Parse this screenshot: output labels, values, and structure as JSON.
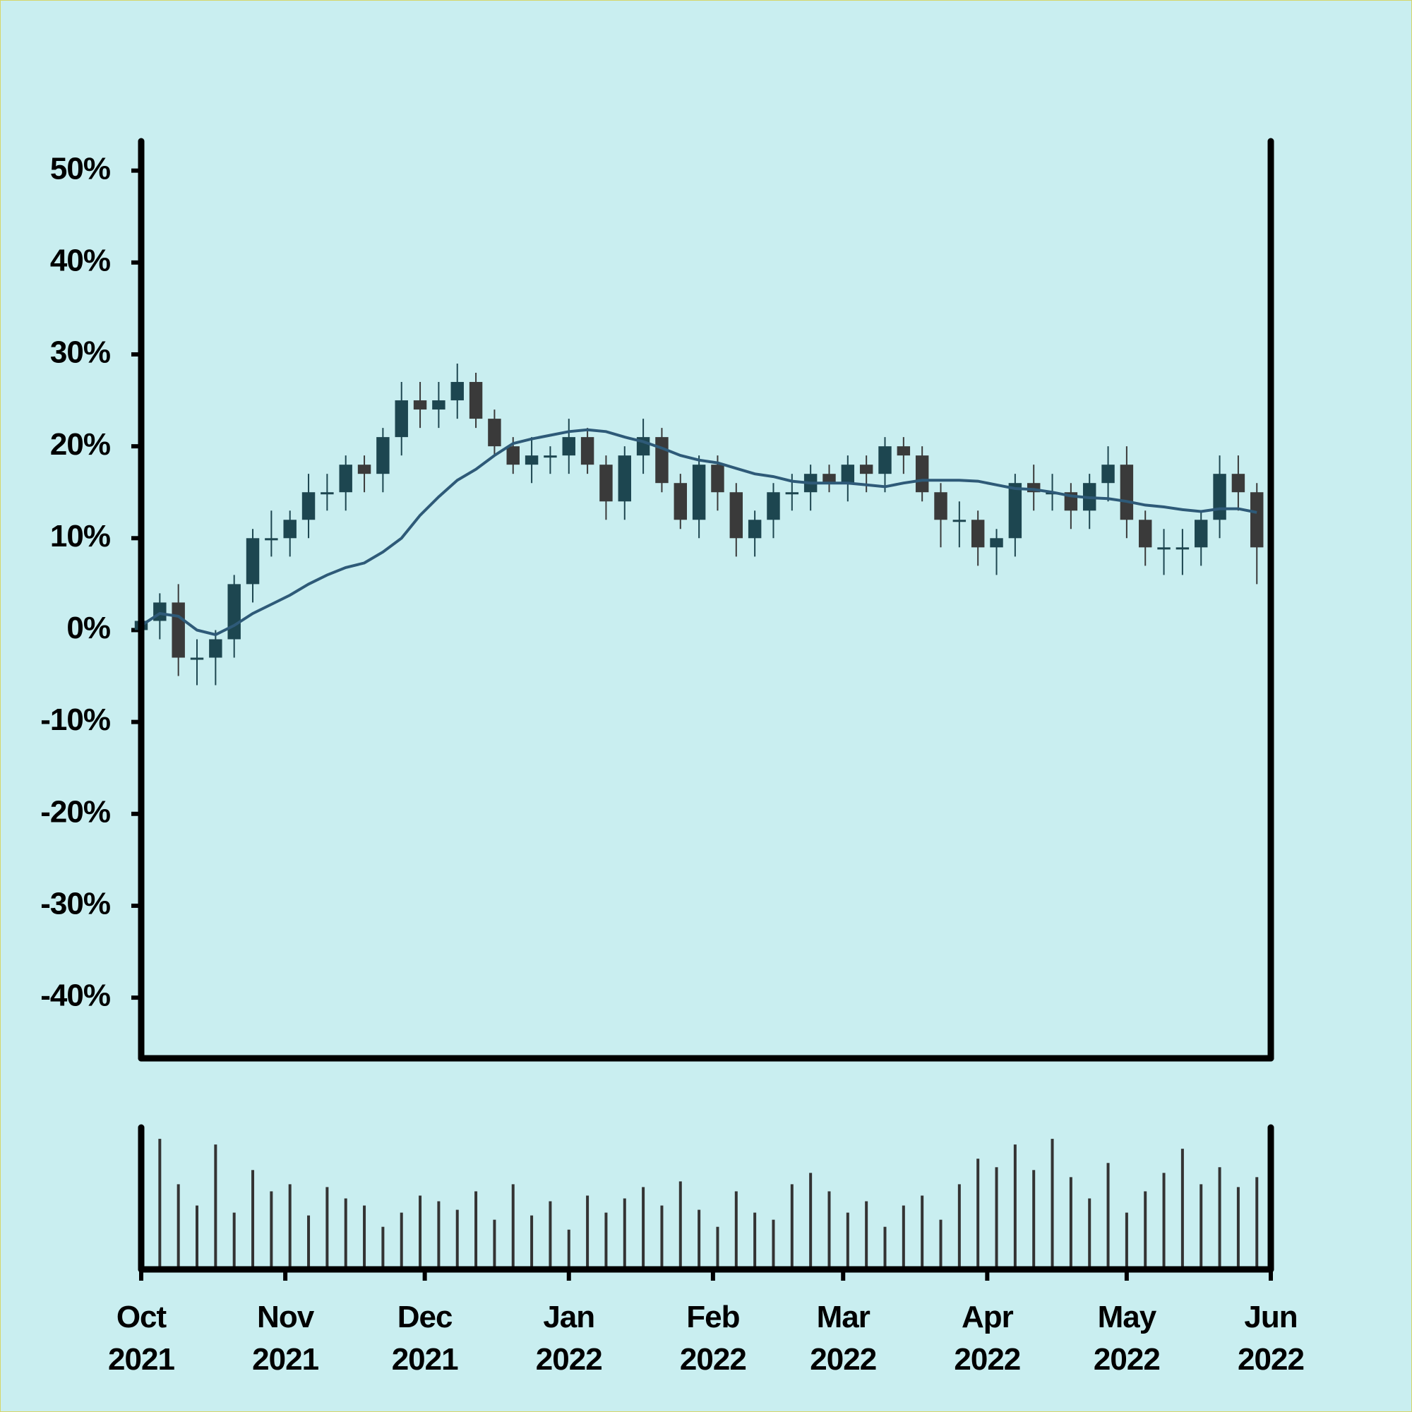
{
  "chart_data": {
    "type": "candlestick",
    "x": [
      0,
      4,
      8,
      12,
      16,
      20,
      24,
      28,
      32,
      36,
      40,
      44,
      48,
      52,
      56,
      60,
      64,
      68,
      72,
      76,
      80,
      84,
      88,
      92,
      96,
      100,
      104,
      108,
      112,
      116,
      120,
      124,
      128,
      132,
      136,
      140,
      144,
      148,
      152,
      156,
      160,
      164,
      168,
      172,
      176,
      180,
      184,
      188,
      192,
      196,
      200,
      204,
      208,
      212,
      216,
      220,
      224,
      228,
      232,
      236,
      240
    ],
    "open": [
      0,
      1,
      3,
      -3,
      -3,
      -1,
      5,
      10,
      10,
      12,
      15,
      15,
      18,
      17,
      21,
      25,
      24,
      25,
      27,
      23,
      20,
      18,
      19,
      19,
      21,
      18,
      14,
      19,
      21,
      16,
      12,
      18,
      15,
      10,
      12,
      15,
      15,
      17,
      16,
      18,
      17,
      20,
      19,
      15,
      12,
      12,
      9,
      10,
      16,
      15,
      15,
      13,
      16,
      18,
      12,
      9,
      9,
      9,
      12,
      17,
      15
    ],
    "high": [
      3,
      4,
      5,
      -1,
      0,
      6,
      11,
      13,
      13,
      17,
      17,
      19,
      19,
      22,
      27,
      27,
      27,
      29,
      28,
      24,
      21,
      21,
      20,
      23,
      22,
      19,
      20,
      23,
      22,
      17,
      19,
      19,
      16,
      13,
      16,
      17,
      18,
      18,
      19,
      19,
      21,
      21,
      20,
      16,
      14,
      13,
      11,
      17,
      18,
      17,
      16,
      17,
      20,
      20,
      13,
      11,
      11,
      13,
      19,
      19,
      16
    ],
    "low": [
      -3,
      -1,
      -5,
      -6,
      -6,
      -3,
      3,
      8,
      8,
      10,
      13,
      13,
      15,
      15,
      19,
      22,
      22,
      23,
      22,
      19,
      17,
      16,
      17,
      17,
      17,
      12,
      12,
      17,
      15,
      11,
      10,
      13,
      8,
      8,
      10,
      13,
      13,
      15,
      14,
      15,
      15,
      17,
      14,
      9,
      9,
      7,
      6,
      8,
      13,
      13,
      11,
      11,
      14,
      10,
      7,
      6,
      6,
      7,
      10,
      13,
      5
    ],
    "close": [
      1,
      3,
      -3,
      -3,
      -1,
      5,
      10,
      10,
      12,
      15,
      15,
      18,
      17,
      21,
      25,
      24,
      25,
      27,
      23,
      20,
      18,
      19,
      19,
      21,
      18,
      14,
      19,
      21,
      16,
      12,
      18,
      15,
      10,
      12,
      15,
      15,
      17,
      16,
      18,
      17,
      20,
      19,
      15,
      12,
      12,
      9,
      10,
      16,
      15,
      15,
      13,
      16,
      18,
      12,
      9,
      9,
      9,
      12,
      17,
      15,
      9
    ],
    "up_color": "#1d4650",
    "down_color": "#3a3a3a",
    "moving_average": {
      "color": "#2e5a78",
      "values": [
        0.5,
        1.8,
        1.5,
        0,
        -0.5,
        0.5,
        1.8,
        2.8,
        3.8,
        5,
        6,
        6.8,
        7.3,
        8.5,
        10,
        12.5,
        14.5,
        16.3,
        17.5,
        19,
        20.3,
        20.8,
        21.2,
        21.6,
        21.8,
        21.6,
        21,
        20.5,
        19.8,
        19,
        18.5,
        18.2,
        17.6,
        17,
        16.7,
        16.2,
        16,
        16,
        16,
        15.8,
        15.6,
        16,
        16.3,
        16.3,
        16.3,
        16.2,
        15.8,
        15.4,
        15.3,
        15,
        14.6,
        14.4,
        14.3,
        14,
        13.6,
        13.4,
        13.1,
        12.9,
        13.2,
        13.2,
        12.8
      ]
    },
    "volume": {
      "color": "#333333",
      "ylim": [
        0,
        100
      ],
      "values": [
        85,
        92,
        60,
        45,
        88,
        40,
        70,
        55,
        60,
        38,
        58,
        50,
        45,
        30,
        40,
        52,
        48,
        42,
        55,
        35,
        60,
        38,
        48,
        28,
        52,
        40,
        50,
        58,
        45,
        62,
        42,
        30,
        55,
        40,
        35,
        60,
        68,
        55,
        40,
        48,
        30,
        45,
        52,
        35,
        60,
        78,
        72,
        88,
        70,
        92,
        65,
        50,
        75,
        40,
        55,
        68,
        85,
        60,
        72,
        58,
        65
      ]
    },
    "xlim": [
      0,
      243
    ],
    "xticks": [
      {
        "value": 0,
        "label": "Oct\n2021"
      },
      {
        "value": 31,
        "label": "Nov\n2021"
      },
      {
        "value": 61,
        "label": "Dec\n2021"
      },
      {
        "value": 92,
        "label": "Jan\n2022"
      },
      {
        "value": 123,
        "label": "Feb\n2022"
      },
      {
        "value": 151,
        "label": "Mar\n2022"
      },
      {
        "value": 182,
        "label": "Apr\n2022"
      },
      {
        "value": 212,
        "label": "May\n2022"
      },
      {
        "value": 243,
        "label": "Jun\n2022"
      }
    ],
    "ylim": [
      -46.6,
      53.2
    ],
    "yticks": [
      {
        "value": 50,
        "label": "50%"
      },
      {
        "value": 40,
        "label": "40%"
      },
      {
        "value": 30,
        "label": "30%"
      },
      {
        "value": 20,
        "label": "20%"
      },
      {
        "value": 10,
        "label": "10%"
      },
      {
        "value": 0,
        "label": "0%"
      },
      {
        "value": -10,
        "label": "-10%"
      },
      {
        "value": -20,
        "label": "-20%"
      },
      {
        "value": -30,
        "label": "-30%"
      },
      {
        "value": -40,
        "label": "-40%"
      }
    ]
  }
}
